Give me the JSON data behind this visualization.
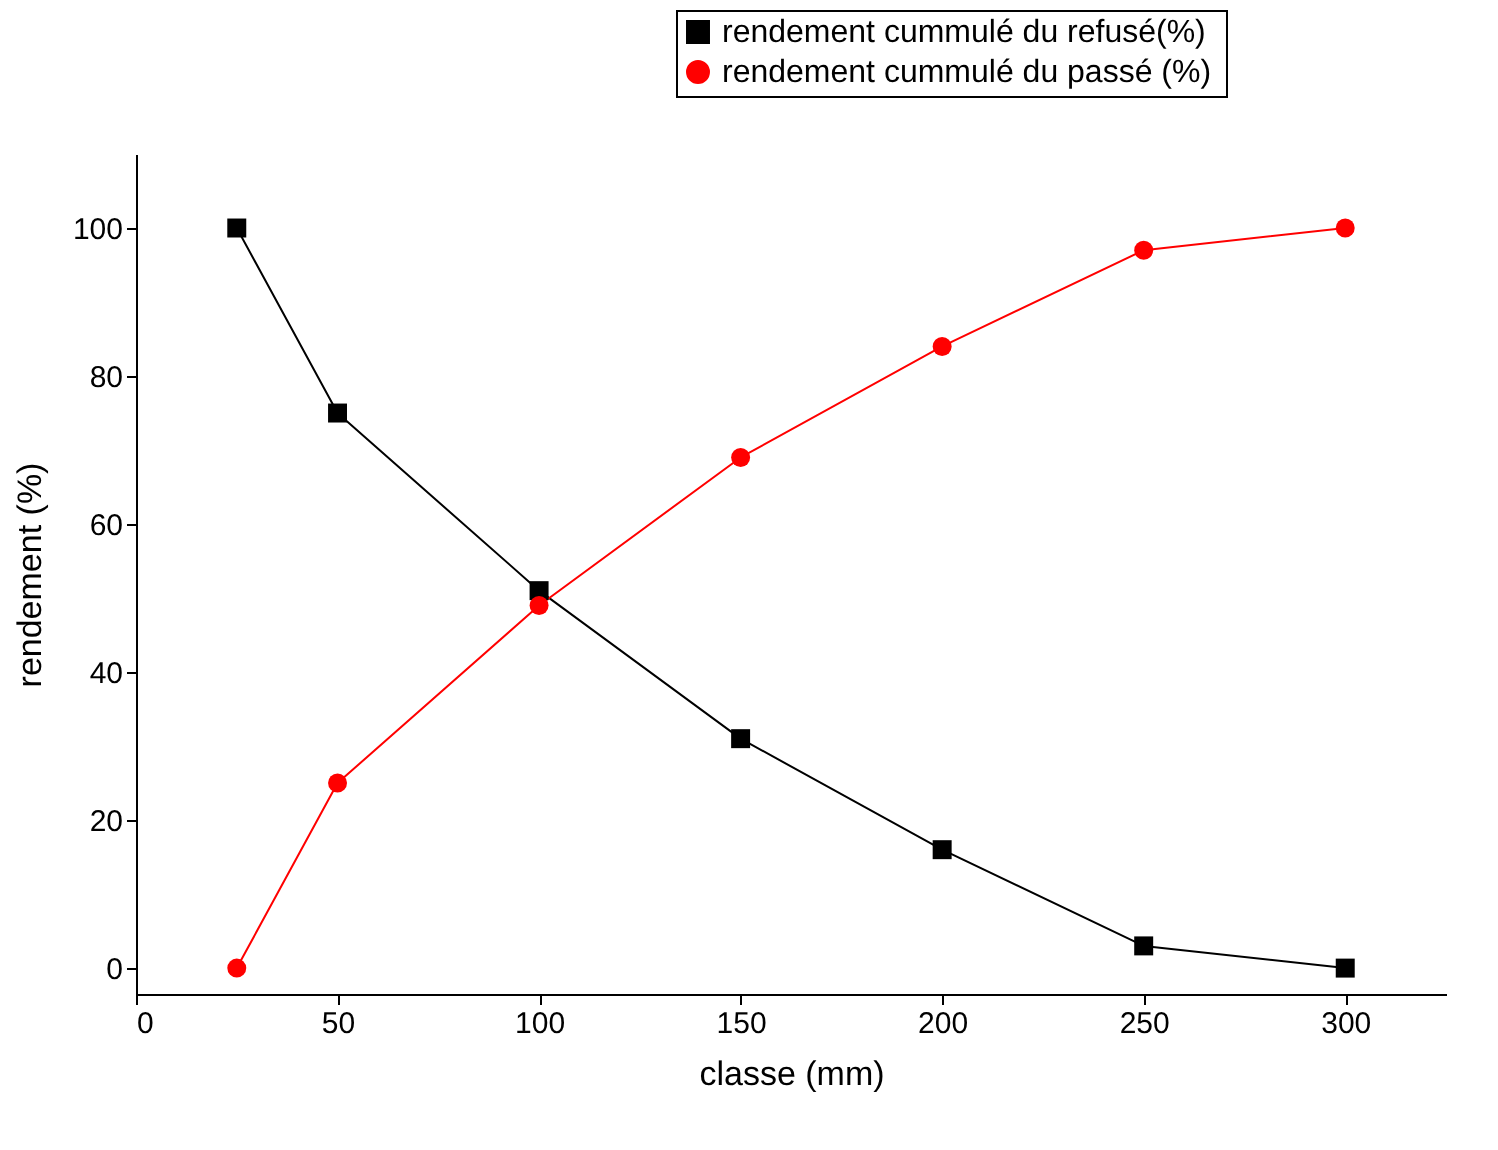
{
  "chart_data": {
    "type": "line",
    "xlabel": "classe (mm)",
    "ylabel": "rendement  (%)",
    "x": [
      25,
      50,
      100,
      150,
      200,
      250,
      300
    ],
    "series": [
      {
        "name": "rendement cummulé du refusé(%)",
        "color": "#000000",
        "marker": "square",
        "values": [
          100,
          75,
          51,
          31,
          16,
          3,
          0
        ]
      },
      {
        "name": "rendement  cummulé du passé (%)",
        "color": "#ff0000",
        "marker": "circle",
        "values": [
          0,
          25,
          49,
          69,
          84,
          97,
          100
        ]
      }
    ],
    "xlim": [
      0,
      325
    ],
    "xticks": [
      0,
      50,
      100,
      150,
      200,
      250,
      300
    ],
    "ylim": [
      -3.5,
      110
    ],
    "yticks": [
      0,
      20,
      40,
      60,
      80,
      100
    ],
    "grid": false,
    "legend": "top right",
    "line_style": "solid"
  }
}
